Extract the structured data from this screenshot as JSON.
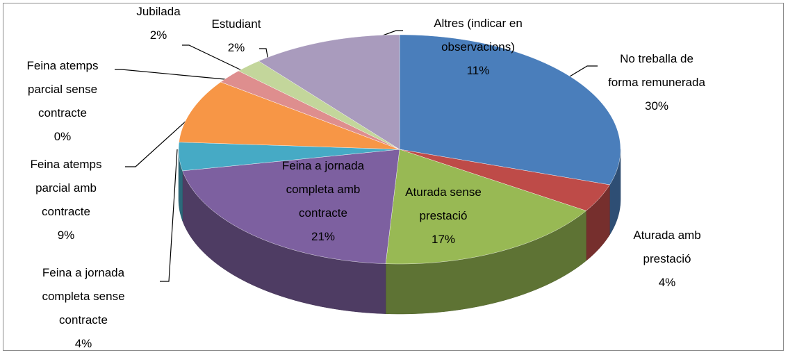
{
  "chart_data": {
    "type": "pie3d",
    "categories": [
      "No treballa de forma remunerada",
      "Aturada amb prestació",
      "Aturada sense prestació",
      "Feina a jornada completa amb contracte",
      "Feina a jornada completa sense contracte",
      "Feina atemps parcial amb contracte",
      "Feina atemps parcial sense contracte",
      "Jubilada",
      "Estudiant",
      "Altres (indicar en observacions)"
    ],
    "values": [
      30,
      4,
      17,
      21,
      4,
      9,
      0,
      2,
      2,
      11
    ],
    "value_labels": [
      "30%",
      "4%",
      "17%",
      "21%",
      "4%",
      "9%",
      "0%",
      "2%",
      "2%",
      "11%"
    ],
    "colors": [
      "#4a7ebb",
      "#be4b48",
      "#98b954",
      "#7d60a0",
      "#46aac5",
      "#f79646",
      "#8064a2",
      "#de8e8e",
      "#c3d69b",
      "#a99bbd"
    ]
  }
}
